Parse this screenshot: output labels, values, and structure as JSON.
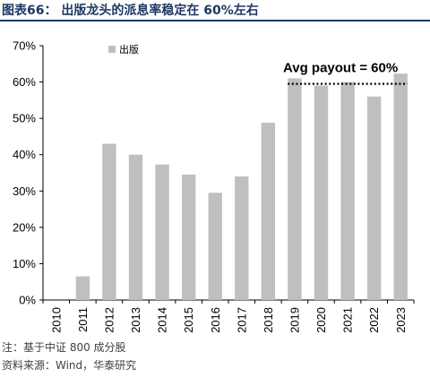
{
  "title": "图表66： 出版龙头的派息率稳定在 60%左右",
  "footnotes": {
    "note": "注：基于中证 800 成分股",
    "source": "资料来源：Wind，华泰研究"
  },
  "colors": {
    "bar": "#bfbfbf",
    "title": "#1f3864",
    "axis": "#000000"
  },
  "chart_data": {
    "type": "bar",
    "categories": [
      "2010",
      "2011",
      "2012",
      "2013",
      "2014",
      "2015",
      "2016",
      "2017",
      "2018",
      "2019",
      "2020",
      "2021",
      "2022",
      "2023"
    ],
    "series": [
      {
        "name": "出版",
        "values": [
          0,
          6.5,
          43,
          40,
          37.3,
          34.5,
          29.5,
          34,
          48.8,
          61,
          59,
          60,
          56,
          62.3
        ]
      }
    ],
    "ylim": [
      0,
      70
    ],
    "yticks": [
      "0%",
      "10%",
      "20%",
      "30%",
      "40%",
      "50%",
      "60%",
      "70%"
    ],
    "ytick_values": [
      0,
      10,
      20,
      30,
      40,
      50,
      60,
      70
    ],
    "legend_position": "top-left",
    "grid": false,
    "annotations": [
      {
        "text": "Avg payout = 60%",
        "y": 59.5,
        "x_start": "2019",
        "x_end": "2023",
        "line_style": "dotted"
      }
    ]
  }
}
